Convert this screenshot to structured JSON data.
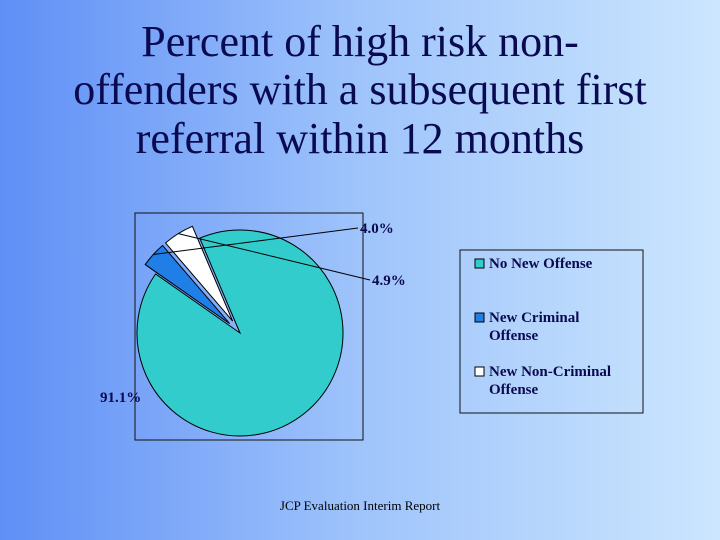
{
  "title_lines": [
    "Percent of high risk non-",
    "offenders with a subsequent first",
    "referral within 12 months"
  ],
  "footer": "JCP Evaluation Interim Report",
  "chart_data": {
    "type": "pie",
    "labels": [
      "No New Offense",
      "New Criminal Offense",
      "New Non-Criminal Offense"
    ],
    "legend_lines": [
      [
        "No New Offense"
      ],
      [
        "New Criminal",
        "Offense"
      ],
      [
        "New Non-Criminal",
        "Offense"
      ]
    ],
    "values": [
      91.1,
      4.0,
      4.9
    ],
    "data_labels": [
      "91.1%",
      "4.0%",
      "4.9%"
    ],
    "colors": [
      "#33cccc",
      "#1f7fe6",
      "#ffffff"
    ],
    "exploded": [
      false,
      true,
      true
    ],
    "legend_position": "right"
  }
}
